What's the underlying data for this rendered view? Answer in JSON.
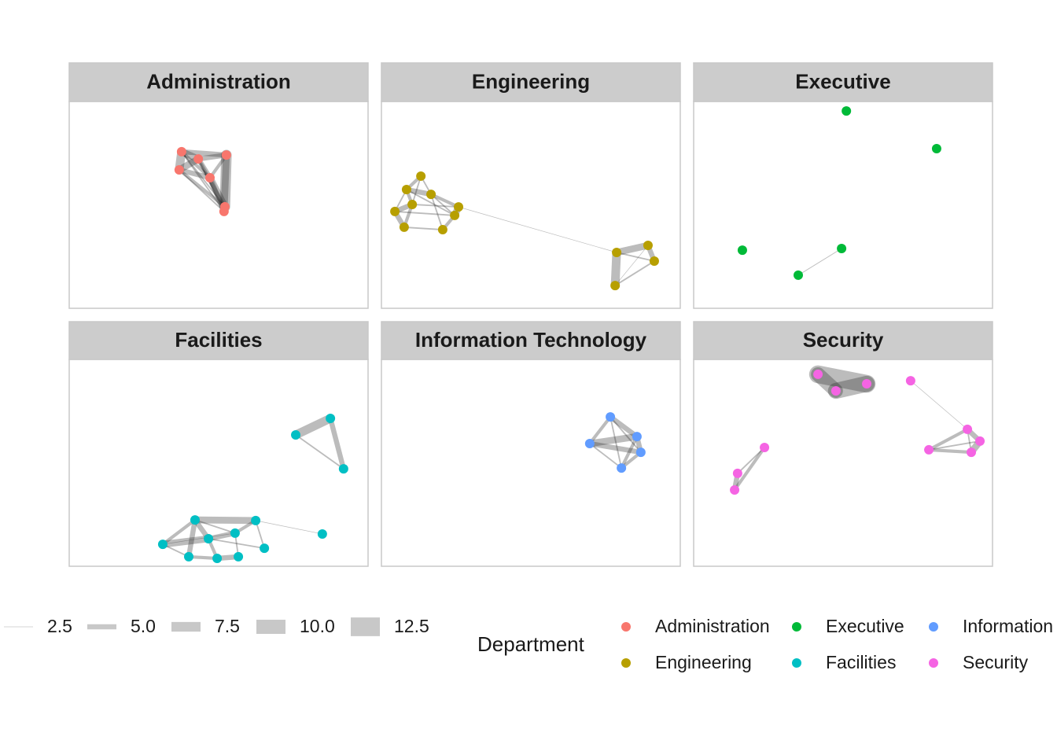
{
  "chart_data": {
    "type": "network",
    "facets": [
      {
        "name": "Administration",
        "color": "#f8766d",
        "nodes": [
          {
            "x": 37.6,
            "y": 24.3
          },
          {
            "x": 43.2,
            "y": 27.8
          },
          {
            "x": 52.6,
            "y": 25.9
          },
          {
            "x": 36.8,
            "y": 33.1
          },
          {
            "x": 47.1,
            "y": 36.9
          },
          {
            "x": 52.1,
            "y": 50.9
          },
          {
            "x": 51.8,
            "y": 53.2
          }
        ],
        "edges": [
          {
            "from": 0,
            "to": 1,
            "weight": 6
          },
          {
            "from": 0,
            "to": 2,
            "weight": 5
          },
          {
            "from": 0,
            "to": 3,
            "weight": 7
          },
          {
            "from": 0,
            "to": 4,
            "weight": 4
          },
          {
            "from": 0,
            "to": 5,
            "weight": 3
          },
          {
            "from": 0,
            "to": 6,
            "weight": 3
          },
          {
            "from": 1,
            "to": 2,
            "weight": 5
          },
          {
            "from": 1,
            "to": 3,
            "weight": 6
          },
          {
            "from": 1,
            "to": 4,
            "weight": 5
          },
          {
            "from": 1,
            "to": 5,
            "weight": 4
          },
          {
            "from": 1,
            "to": 6,
            "weight": 3
          },
          {
            "from": 2,
            "to": 4,
            "weight": 4
          },
          {
            "from": 2,
            "to": 5,
            "weight": 8
          },
          {
            "from": 2,
            "to": 6,
            "weight": 6
          },
          {
            "from": 3,
            "to": 4,
            "weight": 5
          },
          {
            "from": 3,
            "to": 5,
            "weight": 4
          },
          {
            "from": 3,
            "to": 6,
            "weight": 3
          },
          {
            "from": 4,
            "to": 5,
            "weight": 6
          },
          {
            "from": 4,
            "to": 6,
            "weight": 5
          },
          {
            "from": 5,
            "to": 6,
            "weight": 4
          }
        ]
      },
      {
        "name": "Engineering",
        "color": "#b79f00",
        "nodes": [
          {
            "x": 13.2,
            "y": 36.1
          },
          {
            "x": 8.4,
            "y": 42.6
          },
          {
            "x": 16.6,
            "y": 44.9
          },
          {
            "x": 10.3,
            "y": 49.8
          },
          {
            "x": 4.5,
            "y": 53.2
          },
          {
            "x": 25.8,
            "y": 51.0
          },
          {
            "x": 24.5,
            "y": 55.1
          },
          {
            "x": 7.6,
            "y": 60.8
          },
          {
            "x": 20.5,
            "y": 62.0
          },
          {
            "x": 78.7,
            "y": 73.0
          },
          {
            "x": 89.2,
            "y": 69.6
          },
          {
            "x": 91.3,
            "y": 77.2
          },
          {
            "x": 78.2,
            "y": 89.0
          }
        ],
        "edges": [
          {
            "from": 0,
            "to": 1,
            "weight": 4
          },
          {
            "from": 0,
            "to": 2,
            "weight": 3
          },
          {
            "from": 0,
            "to": 3,
            "weight": 3
          },
          {
            "from": 1,
            "to": 2,
            "weight": 5
          },
          {
            "from": 1,
            "to": 3,
            "weight": 4
          },
          {
            "from": 1,
            "to": 4,
            "weight": 3
          },
          {
            "from": 2,
            "to": 5,
            "weight": 4
          },
          {
            "from": 2,
            "to": 6,
            "weight": 3
          },
          {
            "from": 3,
            "to": 4,
            "weight": 5
          },
          {
            "from": 3,
            "to": 5,
            "weight": 3
          },
          {
            "from": 3,
            "to": 7,
            "weight": 4
          },
          {
            "from": 4,
            "to": 6,
            "weight": 3
          },
          {
            "from": 4,
            "to": 7,
            "weight": 5
          },
          {
            "from": 5,
            "to": 6,
            "weight": 6
          },
          {
            "from": 6,
            "to": 8,
            "weight": 4
          },
          {
            "from": 7,
            "to": 8,
            "weight": 3
          },
          {
            "from": 2,
            "to": 8,
            "weight": 3
          },
          {
            "from": 1,
            "to": 6,
            "weight": 3
          },
          {
            "from": 5,
            "to": 9,
            "weight": 2.5
          },
          {
            "from": 9,
            "to": 10,
            "weight": 6
          },
          {
            "from": 9,
            "to": 11,
            "weight": 3
          },
          {
            "from": 9,
            "to": 12,
            "weight": 7
          },
          {
            "from": 10,
            "to": 11,
            "weight": 5
          },
          {
            "from": 11,
            "to": 12,
            "weight": 3
          },
          {
            "from": 10,
            "to": 12,
            "weight": 2.5
          }
        ]
      },
      {
        "name": "Executive",
        "color": "#00ba38",
        "nodes": [
          {
            "x": 51.1,
            "y": 4.6
          },
          {
            "x": 81.3,
            "y": 22.8
          },
          {
            "x": 16.3,
            "y": 71.9
          },
          {
            "x": 49.5,
            "y": 71.1
          },
          {
            "x": 35.0,
            "y": 84.0
          }
        ],
        "edges": [
          {
            "from": 3,
            "to": 4,
            "weight": 2.6
          }
        ]
      },
      {
        "name": "Facilities",
        "color": "#00bfc4",
        "nodes": [
          {
            "x": 87.4,
            "y": 28.5
          },
          {
            "x": 75.8,
            "y": 36.5
          },
          {
            "x": 91.8,
            "y": 52.9
          },
          {
            "x": 42.1,
            "y": 77.6
          },
          {
            "x": 62.4,
            "y": 77.9
          },
          {
            "x": 46.6,
            "y": 86.7
          },
          {
            "x": 55.5,
            "y": 84.0
          },
          {
            "x": 31.3,
            "y": 89.4
          },
          {
            "x": 65.3,
            "y": 91.3
          },
          {
            "x": 40.0,
            "y": 95.4
          },
          {
            "x": 49.5,
            "y": 96.2
          },
          {
            "x": 56.6,
            "y": 95.4
          },
          {
            "x": 84.7,
            "y": 84.4
          }
        ],
        "edges": [
          {
            "from": 0,
            "to": 1,
            "weight": 7
          },
          {
            "from": 0,
            "to": 2,
            "weight": 5
          },
          {
            "from": 1,
            "to": 2,
            "weight": 3
          },
          {
            "from": 3,
            "to": 4,
            "weight": 6
          },
          {
            "from": 3,
            "to": 5,
            "weight": 5
          },
          {
            "from": 3,
            "to": 7,
            "weight": 4
          },
          {
            "from": 3,
            "to": 9,
            "weight": 5
          },
          {
            "from": 4,
            "to": 6,
            "weight": 4
          },
          {
            "from": 4,
            "to": 8,
            "weight": 3
          },
          {
            "from": 5,
            "to": 6,
            "weight": 5
          },
          {
            "from": 5,
            "to": 10,
            "weight": 4
          },
          {
            "from": 6,
            "to": 11,
            "weight": 3
          },
          {
            "from": 7,
            "to": 5,
            "weight": 6
          },
          {
            "from": 7,
            "to": 9,
            "weight": 3
          },
          {
            "from": 9,
            "to": 10,
            "weight": 4
          },
          {
            "from": 10,
            "to": 11,
            "weight": 5
          },
          {
            "from": 4,
            "to": 12,
            "weight": 2.5
          },
          {
            "from": 3,
            "to": 6,
            "weight": 3
          },
          {
            "from": 5,
            "to": 8,
            "weight": 3
          },
          {
            "from": 6,
            "to": 7,
            "weight": 2.5
          }
        ]
      },
      {
        "name": "Information Technology",
        "color": "#619cff",
        "nodes": [
          {
            "x": 76.6,
            "y": 27.8
          },
          {
            "x": 85.5,
            "y": 37.3
          },
          {
            "x": 69.7,
            "y": 40.7
          },
          {
            "x": 86.8,
            "y": 44.9
          },
          {
            "x": 80.3,
            "y": 52.5
          }
        ],
        "edges": [
          {
            "from": 0,
            "to": 1,
            "weight": 5
          },
          {
            "from": 0,
            "to": 2,
            "weight": 4
          },
          {
            "from": 0,
            "to": 3,
            "weight": 3
          },
          {
            "from": 0,
            "to": 4,
            "weight": 3
          },
          {
            "from": 1,
            "to": 2,
            "weight": 6
          },
          {
            "from": 1,
            "to": 3,
            "weight": 5
          },
          {
            "from": 1,
            "to": 4,
            "weight": 4
          },
          {
            "from": 2,
            "to": 3,
            "weight": 5
          },
          {
            "from": 2,
            "to": 4,
            "weight": 3
          },
          {
            "from": 3,
            "to": 4,
            "weight": 4
          }
        ]
      },
      {
        "name": "Security",
        "color": "#f564e3",
        "nodes": [
          {
            "x": 41.6,
            "y": 7.2
          },
          {
            "x": 47.6,
            "y": 15.2
          },
          {
            "x": 57.9,
            "y": 11.8
          },
          {
            "x": 72.6,
            "y": 10.3
          },
          {
            "x": 91.6,
            "y": 33.8
          },
          {
            "x": 95.8,
            "y": 39.5
          },
          {
            "x": 78.7,
            "y": 43.7
          },
          {
            "x": 92.9,
            "y": 44.9
          },
          {
            "x": 23.7,
            "y": 42.6
          },
          {
            "x": 14.7,
            "y": 55.1
          },
          {
            "x": 13.7,
            "y": 63.1
          }
        ],
        "edges": [
          {
            "from": 0,
            "to": 1,
            "weight": 10
          },
          {
            "from": 0,
            "to": 2,
            "weight": 12
          },
          {
            "from": 1,
            "to": 2,
            "weight": 11
          },
          {
            "from": 3,
            "to": 4,
            "weight": 2.5
          },
          {
            "from": 4,
            "to": 5,
            "weight": 5
          },
          {
            "from": 4,
            "to": 6,
            "weight": 4
          },
          {
            "from": 4,
            "to": 7,
            "weight": 3
          },
          {
            "from": 5,
            "to": 6,
            "weight": 3
          },
          {
            "from": 5,
            "to": 7,
            "weight": 6
          },
          {
            "from": 6,
            "to": 7,
            "weight": 4
          },
          {
            "from": 8,
            "to": 9,
            "weight": 3
          },
          {
            "from": 8,
            "to": 10,
            "weight": 4
          },
          {
            "from": 9,
            "to": 10,
            "weight": 5
          }
        ]
      }
    ],
    "width_legend": [
      {
        "value": 2.5,
        "label": "2.5"
      },
      {
        "value": 5,
        "label": "5.0"
      },
      {
        "value": 7.5,
        "label": "7.5"
      },
      {
        "value": 10,
        "label": "10.0"
      },
      {
        "value": 12.5,
        "label": "12.5"
      }
    ],
    "color_legend_title": "Department"
  }
}
